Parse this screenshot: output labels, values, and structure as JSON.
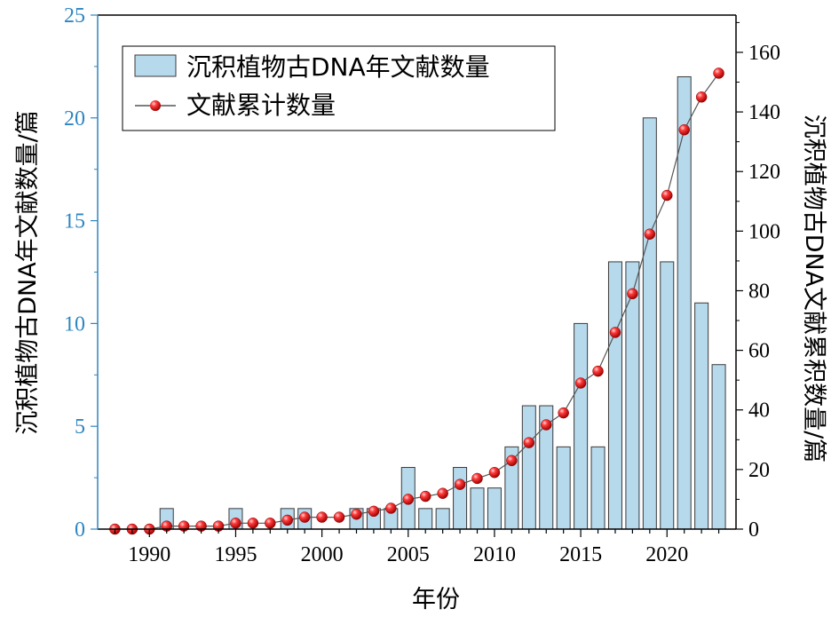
{
  "chart_data": {
    "type": "bar+line",
    "x": [
      1988,
      1989,
      1990,
      1991,
      1992,
      1993,
      1994,
      1995,
      1996,
      1997,
      1998,
      1999,
      2000,
      2001,
      2002,
      2003,
      2004,
      2005,
      2006,
      2007,
      2008,
      2009,
      2010,
      2011,
      2012,
      2013,
      2014,
      2015,
      2016,
      2017,
      2018,
      2019,
      2020,
      2021,
      2022,
      2023
    ],
    "series": [
      {
        "name": "沉积植物古DNA年文献数量",
        "kind": "bar",
        "axis": "left",
        "values": [
          0,
          0,
          0,
          1,
          0,
          0,
          0,
          1,
          0,
          0,
          1,
          1,
          0,
          0,
          1,
          1,
          1,
          3,
          1,
          1,
          3,
          2,
          2,
          4,
          6,
          6,
          4,
          10,
          4,
          13,
          13,
          20,
          13,
          22,
          11,
          8
        ]
      },
      {
        "name": "文献累计数量",
        "kind": "line",
        "axis": "right",
        "values": [
          0,
          0,
          0,
          1,
          1,
          1,
          1,
          2,
          2,
          2,
          3,
          4,
          4,
          4,
          5,
          6,
          7,
          10,
          11,
          12,
          15,
          17,
          19,
          23,
          29,
          35,
          39,
          49,
          53,
          66,
          79,
          99,
          112,
          134,
          145,
          153
        ]
      }
    ],
    "xlabel": "年份",
    "ylabel_left": "沉积植物古DNA年文献数量/篇",
    "ylabel_right": "沉积植物古DNA文献累积数量/篇",
    "xlim": [
      1987,
      2024
    ],
    "ylim_left": [
      0,
      25
    ],
    "ylim_right": [
      0,
      172.5
    ],
    "xticks": [
      "1990",
      "1995",
      "2000",
      "2005",
      "2010",
      "2015",
      "2020"
    ],
    "yticks_left": [
      "0",
      "5",
      "10",
      "15",
      "20",
      "25"
    ],
    "yticks_right": [
      "0",
      "20",
      "40",
      "60",
      "80",
      "100",
      "120",
      "140",
      "160"
    ],
    "legend_position": "top-left",
    "grid": false
  },
  "colors": {
    "bar_fill": "#b7d9ec",
    "bar_stroke": "#3a3a3a",
    "left_axis": "#2e86c1",
    "right_axis": "#000000",
    "line": "#555555",
    "marker": "#e41a1c"
  }
}
